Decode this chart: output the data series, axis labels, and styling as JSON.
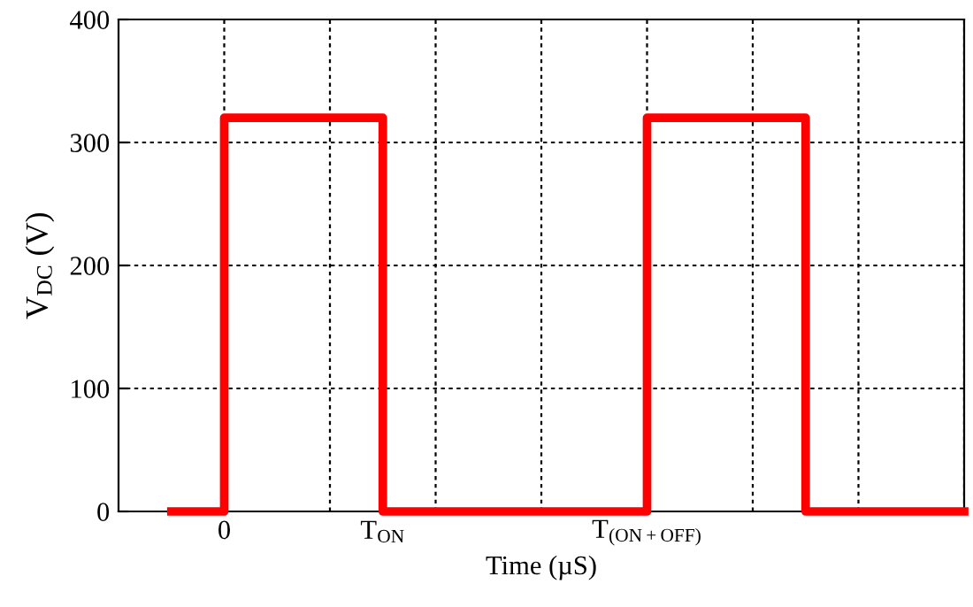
{
  "chart_data": {
    "type": "step",
    "xlabel": "Time (µS)",
    "ylabel": "V$_{DC}$ (V)",
    "categories": [
      null,
      "0",
      null,
      null,
      "T$_{ON}$",
      null,
      null,
      null,
      null,
      "T$_{(ON+OFF)}$",
      null,
      null,
      null,
      null,
      null,
      null
    ],
    "series": [
      {
        "color": "#ff0000",
        "values": [
          0,
          320,
          320,
          320,
          0,
          0,
          0,
          0,
          0,
          320,
          320,
          320,
          0,
          0,
          0,
          0
        ]
      }
    ],
    "ylim": [
      0,
      400
    ],
    "yticks": [
      0,
      100,
      200,
      300,
      400
    ],
    "grid": true,
    "marker": "none",
    "line_style": "solid",
    "legend": false
  }
}
